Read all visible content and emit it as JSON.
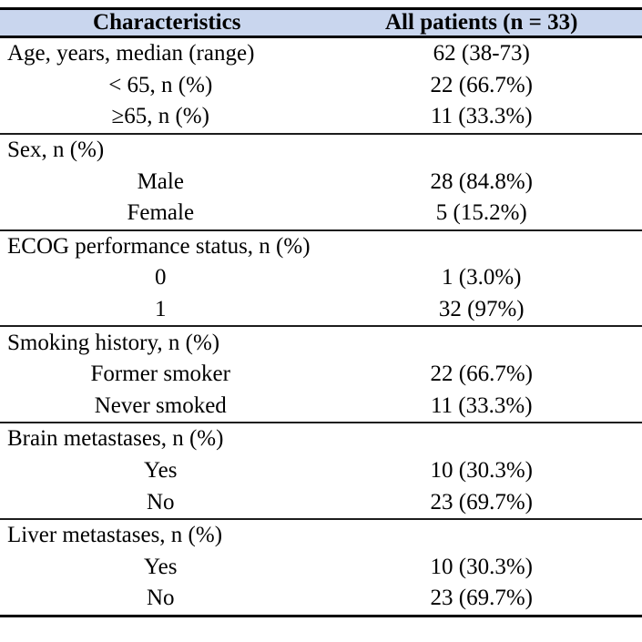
{
  "colors": {
    "header_bg": "#c9d6ee",
    "border_strong": "#000000",
    "border_divider": "#1c1c1c",
    "text": "#000000"
  },
  "table": {
    "header": {
      "characteristics": "Characteristics",
      "all_patients": "All patients (n = 33)"
    },
    "sections": [
      {
        "rows": [
          {
            "label": "Age, years, median (range)",
            "value": "62 (38-73)"
          },
          {
            "label": "< 65, n (%)",
            "value": "22 (66.7%)"
          },
          {
            "label": "≥65, n (%)",
            "value": "11 (33.3%)"
          }
        ]
      },
      {
        "rows": [
          {
            "label": "Sex, n (%)",
            "value": ""
          },
          {
            "label": "Male",
            "value": "28 (84.8%)"
          },
          {
            "label": "Female",
            "value": "5 (15.2%)"
          }
        ]
      },
      {
        "rows": [
          {
            "label": "ECOG performance status, n (%)",
            "value": ""
          },
          {
            "label": "0",
            "value": "1 (3.0%)"
          },
          {
            "label": "1",
            "value": "32 (97%)"
          }
        ]
      },
      {
        "rows": [
          {
            "label": "Smoking history, n (%)",
            "value": ""
          },
          {
            "label": "Former smoker",
            "value": "22 (66.7%)"
          },
          {
            "label": "Never smoked",
            "value": "11 (33.3%)"
          }
        ]
      },
      {
        "rows": [
          {
            "label": "Brain metastases, n (%)",
            "value": ""
          },
          {
            "label": "Yes",
            "value": "10 (30.3%)"
          },
          {
            "label": "No",
            "value": "23 (69.7%)"
          }
        ]
      },
      {
        "rows": [
          {
            "label": "Liver metastases, n (%)",
            "value": ""
          },
          {
            "label": "Yes",
            "value": "10 (30.3%)"
          },
          {
            "label": "No",
            "value": "23 (69.7%)"
          }
        ]
      }
    ]
  }
}
